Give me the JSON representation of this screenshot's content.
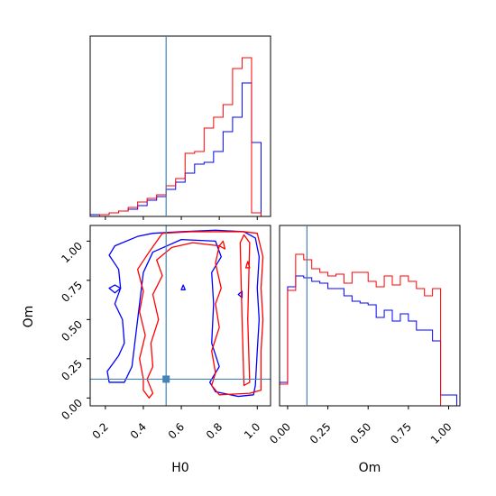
{
  "chart_data": {
    "type": "corner",
    "parameters": [
      "H0",
      "Om"
    ],
    "truth": {
      "H0": 0.52,
      "Om": 0.12
    },
    "colors": {
      "series_a": "#0000ff",
      "series_b": "#ff0000",
      "truth": "#4682b4"
    },
    "series": [
      {
        "color": "blue"
      },
      {
        "color": "red"
      }
    ],
    "panels": [
      {
        "id": "H0-hist",
        "type": "histogram",
        "xlim": [
          0.12,
          1.07
        ],
        "ylim": [
          0,
          1.0
        ],
        "bin_edges": [
          0.12,
          0.17,
          0.22,
          0.27,
          0.32,
          0.37,
          0.42,
          0.47,
          0.52,
          0.57,
          0.62,
          0.67,
          0.72,
          0.77,
          0.82,
          0.87,
          0.92,
          0.97,
          1.02,
          1.07
        ],
        "blue": [
          0.01,
          0.01,
          0.02,
          0.03,
          0.04,
          0.06,
          0.09,
          0.11,
          0.15,
          0.19,
          0.24,
          0.29,
          0.3,
          0.36,
          0.47,
          0.55,
          0.74,
          0.41,
          0.0
        ],
        "red": [
          0.0,
          0.01,
          0.02,
          0.03,
          0.05,
          0.08,
          0.1,
          0.12,
          0.17,
          0.21,
          0.35,
          0.36,
          0.49,
          0.55,
          0.62,
          0.82,
          0.88,
          0.02,
          0.0
        ]
      },
      {
        "id": "Om-hist",
        "type": "histogram",
        "xlim": [
          -0.05,
          1.07
        ],
        "ylim": [
          0,
          1.0
        ],
        "bin_edges": [
          -0.05,
          0.0,
          0.05,
          0.1,
          0.15,
          0.2,
          0.25,
          0.3,
          0.35,
          0.4,
          0.45,
          0.5,
          0.55,
          0.6,
          0.65,
          0.7,
          0.75,
          0.8,
          0.85,
          0.9,
          0.95,
          1.0,
          1.05
        ],
        "blue": [
          0.13,
          0.66,
          0.72,
          0.71,
          0.69,
          0.68,
          0.65,
          0.65,
          0.61,
          0.58,
          0.57,
          0.56,
          0.49,
          0.53,
          0.47,
          0.51,
          0.47,
          0.42,
          0.42,
          0.36,
          0.06,
          0.06
        ],
        "red": [
          0.12,
          0.64,
          0.84,
          0.81,
          0.76,
          0.74,
          0.72,
          0.73,
          0.68,
          0.74,
          0.74,
          0.69,
          0.66,
          0.72,
          0.67,
          0.72,
          0.69,
          0.65,
          0.61,
          0.65,
          0.0,
          0.0
        ]
      },
      {
        "id": "H0-Om-2d",
        "type": "contour",
        "xlim": [
          0.12,
          1.07
        ],
        "ylim": [
          -0.05,
          1.1
        ],
        "blue_contours": [
          [
            [
              0.37,
              1.03
            ],
            [
              0.45,
              1.05
            ],
            [
              0.6,
              1.06
            ],
            [
              0.78,
              1.07
            ],
            [
              0.93,
              1.06
            ],
            [
              0.99,
              1.02
            ],
            [
              1.01,
              0.9
            ],
            [
              1.0,
              0.7
            ],
            [
              1.01,
              0.5
            ],
            [
              1.0,
              0.3
            ],
            [
              0.99,
              0.08
            ],
            [
              0.98,
              0.02
            ],
            [
              0.9,
              0.01
            ],
            [
              0.78,
              0.04
            ],
            [
              0.75,
              0.1
            ],
            [
              0.8,
              0.2
            ],
            [
              0.76,
              0.35
            ],
            [
              0.77,
              0.6
            ],
            [
              0.76,
              0.8
            ],
            [
              0.81,
              0.9
            ],
            [
              0.78,
              1.0
            ],
            [
              0.6,
              1.01
            ],
            [
              0.45,
              0.93
            ],
            [
              0.4,
              0.8
            ],
            [
              0.38,
              0.6
            ],
            [
              0.36,
              0.4
            ],
            [
              0.34,
              0.2
            ],
            [
              0.3,
              0.1
            ],
            [
              0.22,
              0.1
            ],
            [
              0.21,
              0.17
            ],
            [
              0.27,
              0.27
            ],
            [
              0.3,
              0.35
            ],
            [
              0.29,
              0.5
            ],
            [
              0.25,
              0.6
            ],
            [
              0.28,
              0.7
            ],
            [
              0.27,
              0.82
            ],
            [
              0.22,
              0.91
            ],
            [
              0.25,
              0.97
            ],
            [
              0.37,
              1.03
            ]
          ],
          [
            [
              0.22,
              0.7
            ],
            [
              0.25,
              0.72
            ],
            [
              0.28,
              0.7
            ],
            [
              0.25,
              0.67
            ],
            [
              0.22,
              0.7
            ]
          ],
          [
            [
              0.6,
              0.69
            ],
            [
              0.61,
              0.72
            ],
            [
              0.62,
              0.69
            ],
            [
              0.6,
              0.69
            ]
          ],
          [
            [
              0.9,
              0.66
            ],
            [
              0.92,
              0.68
            ],
            [
              0.92,
              0.64
            ],
            [
              0.9,
              0.66
            ]
          ]
        ],
        "red_contours": [
          [
            [
              0.5,
              1.05
            ],
            [
              0.65,
              1.06
            ],
            [
              0.78,
              1.06
            ],
            [
              0.93,
              1.06
            ],
            [
              1.0,
              1.05
            ],
            [
              1.03,
              0.9
            ],
            [
              1.02,
              0.7
            ],
            [
              1.03,
              0.5
            ],
            [
              1.02,
              0.3
            ],
            [
              1.02,
              0.05
            ],
            [
              0.96,
              0.03
            ],
            [
              0.8,
              0.02
            ],
            [
              0.76,
              0.08
            ],
            [
              0.78,
              0.16
            ],
            [
              0.76,
              0.3
            ],
            [
              0.8,
              0.45
            ],
            [
              0.78,
              0.6
            ],
            [
              0.81,
              0.7
            ],
            [
              0.78,
              0.86
            ],
            [
              0.8,
              0.97
            ],
            [
              0.66,
              0.99
            ],
            [
              0.55,
              0.96
            ],
            [
              0.47,
              0.88
            ],
            [
              0.5,
              0.78
            ],
            [
              0.45,
              0.66
            ],
            [
              0.48,
              0.5
            ],
            [
              0.44,
              0.35
            ],
            [
              0.45,
              0.2
            ],
            [
              0.42,
              0.12
            ],
            [
              0.45,
              0.03
            ],
            [
              0.43,
              0.0
            ],
            [
              0.4,
              0.05
            ],
            [
              0.4,
              0.12
            ],
            [
              0.38,
              0.25
            ],
            [
              0.41,
              0.4
            ],
            [
              0.38,
              0.55
            ],
            [
              0.4,
              0.68
            ],
            [
              0.37,
              0.82
            ],
            [
              0.43,
              0.93
            ],
            [
              0.5,
              1.05
            ]
          ],
          [
            [
              0.94,
              0.83
            ],
            [
              0.95,
              0.87
            ],
            [
              0.96,
              0.83
            ],
            [
              0.94,
              0.83
            ]
          ],
          [
            [
              0.91,
              0.99
            ],
            [
              0.93,
              1.04
            ],
            [
              0.96,
              0.99
            ],
            [
              0.95,
              0.5
            ],
            [
              0.96,
              0.1
            ],
            [
              0.93,
              0.08
            ],
            [
              0.92,
              0.5
            ],
            [
              0.91,
              0.99
            ]
          ],
          [
            [
              0.8,
              0.97
            ],
            [
              0.82,
              1.0
            ],
            [
              0.83,
              0.95
            ],
            [
              0.8,
              0.97
            ]
          ]
        ]
      }
    ],
    "axis_labels": {
      "x1": "H0",
      "y1": "Om",
      "x2": "Om"
    },
    "ticks": {
      "H0": [
        "0.2",
        "0.4",
        "0.6",
        "0.8",
        "1.0"
      ],
      "H0_values": [
        0.2,
        0.4,
        0.6,
        0.8,
        1.0
      ],
      "Om": [
        "0.00",
        "0.25",
        "0.50",
        "0.75",
        "1.00"
      ],
      "Om_values": [
        0.0,
        0.25,
        0.5,
        0.75,
        1.0
      ]
    },
    "grid": false,
    "legend": "none"
  }
}
